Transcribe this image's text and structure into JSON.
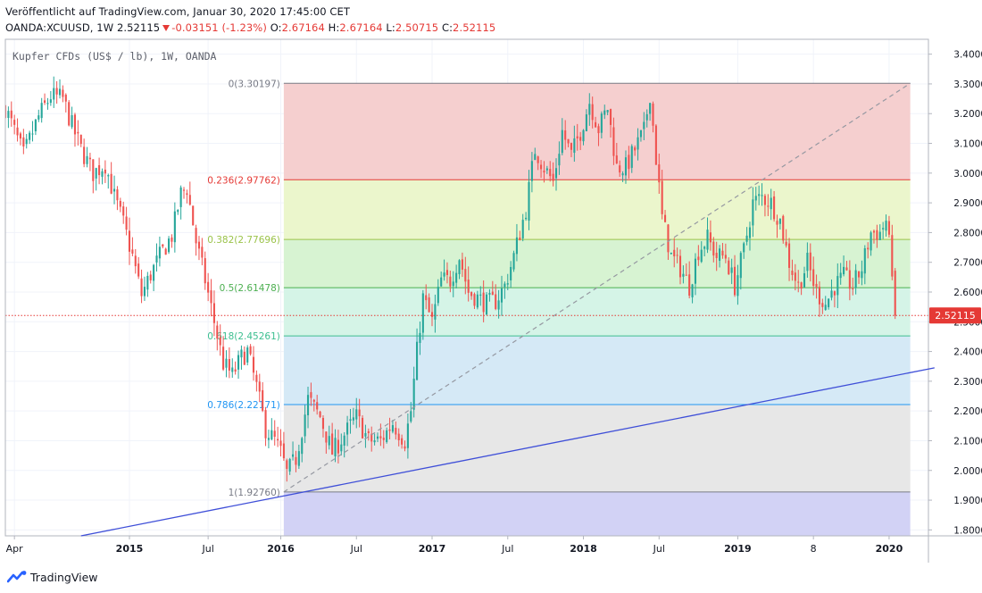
{
  "header": {
    "published": "Veröffentlicht auf TradingView.com, Januar 30, 2020 17:45:00 CET",
    "symbol": "OANDA:XCUUSD, 1W",
    "last": "2.52115",
    "change": "-0.03151 (-1.23%)",
    "o_label": "O:",
    "o": "2.67164",
    "h_label": "H:",
    "h": "2.67164",
    "l_label": "L:",
    "l": "2.50715",
    "c_label": "C:",
    "c": "2.52115"
  },
  "footer": {
    "brand": "TradingView"
  },
  "colors": {
    "bull": "#26a69a",
    "bear": "#ef5350",
    "trendline": "#3f4fd8",
    "price_line": "#e53935"
  },
  "chart_data": {
    "type": "candlestick",
    "title": "Kupfer CFDs (US$ / lb), 1W, OANDA",
    "ylim": [
      1.78,
      3.45
    ],
    "y_ticks": [
      "1.80000",
      "1.90000",
      "2.00000",
      "2.10000",
      "2.20000",
      "2.30000",
      "2.40000",
      "2.50000",
      "2.60000",
      "2.70000",
      "2.80000",
      "2.90000",
      "3.00000",
      "3.10000",
      "3.20000",
      "3.30000",
      "3.40000"
    ],
    "x_range_weeks": [
      0,
      305
    ],
    "x_ticks": [
      {
        "label": "Apr",
        "week": 3
      },
      {
        "label": "2015",
        "week": 41
      },
      {
        "label": "Jul",
        "week": 67
      },
      {
        "label": "2016",
        "week": 91
      },
      {
        "label": "Jul",
        "week": 116
      },
      {
        "label": "2017",
        "week": 141
      },
      {
        "label": "Jul",
        "week": 166
      },
      {
        "label": "2018",
        "week": 191
      },
      {
        "label": "Jul",
        "week": 216
      },
      {
        "label": "2019",
        "week": 242
      },
      {
        "label": "8",
        "week": 267
      },
      {
        "label": "2020",
        "week": 292
      }
    ],
    "last_price": {
      "value": 2.52115,
      "label": "2.52115"
    },
    "fibonacci": {
      "start_week": 92,
      "end_week": 299,
      "levels": [
        {
          "label": "0(3.30197)",
          "price": 3.30197,
          "line": "#787b86",
          "fill": "#f4cccc"
        },
        {
          "label": "0.236(2.97762)",
          "price": 2.97762,
          "line": "#e53935",
          "fill": "#eaf5c9"
        },
        {
          "label": "0.382(2.77696)",
          "price": 2.77696,
          "line": "#9bc34a",
          "fill": "#d5f2d0"
        },
        {
          "label": "0.5(2.61478)",
          "price": 2.61478,
          "line": "#4caf50",
          "fill": "#d3f3e6"
        },
        {
          "label": "0.618(2.45261)",
          "price": 2.45261,
          "line": "#3dbf90",
          "fill": "#d3e8f5"
        },
        {
          "label": "0.786(2.22171)",
          "price": 2.22171,
          "line": "#2196f3",
          "fill": "#e6e6e6"
        },
        {
          "label": "1(1.92760)",
          "price": 1.9276,
          "line": "#787b86",
          "fill": "#d0d0f4"
        }
      ],
      "bottom_price": 1.78
    },
    "fib_diagonal": [
      {
        "week": 92,
        "price": 1.9276
      },
      {
        "week": 299,
        "price": 3.30197
      }
    ],
    "trendline": [
      {
        "week": 25,
        "price": 1.78
      },
      {
        "week": 307,
        "price": 2.345
      }
    ],
    "anchors": [
      {
        "week": 0,
        "price": 3.22
      },
      {
        "week": 6,
        "price": 3.06
      },
      {
        "week": 11,
        "price": 3.19
      },
      {
        "week": 15,
        "price": 3.26
      },
      {
        "week": 19,
        "price": 3.25
      },
      {
        "week": 22,
        "price": 3.16
      },
      {
        "week": 25,
        "price": 3.08
      },
      {
        "week": 29,
        "price": 3.0
      },
      {
        "week": 33,
        "price": 3.03
      },
      {
        "week": 36,
        "price": 2.92
      },
      {
        "week": 39,
        "price": 2.83
      },
      {
        "week": 42,
        "price": 2.72
      },
      {
        "week": 45,
        "price": 2.59
      },
      {
        "week": 48,
        "price": 2.66
      },
      {
        "week": 51,
        "price": 2.72
      },
      {
        "week": 55,
        "price": 2.79
      },
      {
        "week": 58,
        "price": 2.93
      },
      {
        "week": 60,
        "price": 2.95
      },
      {
        "week": 63,
        "price": 2.77
      },
      {
        "week": 66,
        "price": 2.64
      },
      {
        "week": 69,
        "price": 2.5
      },
      {
        "week": 72,
        "price": 2.36
      },
      {
        "week": 75,
        "price": 2.32
      },
      {
        "week": 78,
        "price": 2.38
      },
      {
        "week": 80,
        "price": 2.4
      },
      {
        "week": 83,
        "price": 2.28
      },
      {
        "week": 86,
        "price": 2.14
      },
      {
        "week": 89,
        "price": 2.1
      },
      {
        "week": 91,
        "price": 2.06
      },
      {
        "week": 93,
        "price": 1.99
      },
      {
        "week": 96,
        "price": 2.04
      },
      {
        "week": 100,
        "price": 2.24
      },
      {
        "week": 104,
        "price": 2.18
      },
      {
        "week": 108,
        "price": 2.06
      },
      {
        "week": 112,
        "price": 2.12
      },
      {
        "week": 116,
        "price": 2.18
      },
      {
        "week": 120,
        "price": 2.1
      },
      {
        "week": 124,
        "price": 2.1
      },
      {
        "week": 128,
        "price": 2.16
      },
      {
        "week": 132,
        "price": 2.1
      },
      {
        "week": 134,
        "price": 2.2
      },
      {
        "week": 136,
        "price": 2.4
      },
      {
        "week": 138,
        "price": 2.58
      },
      {
        "week": 141,
        "price": 2.5
      },
      {
        "week": 144,
        "price": 2.64
      },
      {
        "week": 147,
        "price": 2.64
      },
      {
        "week": 150,
        "price": 2.72
      },
      {
        "week": 153,
        "price": 2.6
      },
      {
        "week": 156,
        "price": 2.58
      },
      {
        "week": 159,
        "price": 2.56
      },
      {
        "week": 162,
        "price": 2.57
      },
      {
        "week": 165,
        "price": 2.62
      },
      {
        "week": 168,
        "price": 2.72
      },
      {
        "week": 172,
        "price": 2.88
      },
      {
        "week": 175,
        "price": 3.08
      },
      {
        "week": 178,
        "price": 3.02
      },
      {
        "week": 181,
        "price": 2.97
      },
      {
        "week": 184,
        "price": 3.14
      },
      {
        "week": 187,
        "price": 3.06
      },
      {
        "week": 190,
        "price": 3.14
      },
      {
        "week": 193,
        "price": 3.24
      },
      {
        "week": 196,
        "price": 3.15
      },
      {
        "week": 199,
        "price": 3.22
      },
      {
        "week": 202,
        "price": 3.02
      },
      {
        "week": 205,
        "price": 3.02
      },
      {
        "week": 208,
        "price": 3.08
      },
      {
        "week": 211,
        "price": 3.14
      },
      {
        "week": 213,
        "price": 3.27
      },
      {
        "week": 215,
        "price": 3.05
      },
      {
        "week": 217,
        "price": 2.85
      },
      {
        "week": 220,
        "price": 2.72
      },
      {
        "week": 223,
        "price": 2.68
      },
      {
        "week": 226,
        "price": 2.62
      },
      {
        "week": 229,
        "price": 2.74
      },
      {
        "week": 232,
        "price": 2.78
      },
      {
        "week": 235,
        "price": 2.72
      },
      {
        "week": 238,
        "price": 2.72
      },
      {
        "week": 241,
        "price": 2.62
      },
      {
        "week": 244,
        "price": 2.74
      },
      {
        "week": 247,
        "price": 2.9
      },
      {
        "week": 250,
        "price": 2.92
      },
      {
        "week": 253,
        "price": 2.9
      },
      {
        "week": 256,
        "price": 2.84
      },
      {
        "week": 259,
        "price": 2.7
      },
      {
        "week": 262,
        "price": 2.62
      },
      {
        "week": 265,
        "price": 2.7
      },
      {
        "week": 268,
        "price": 2.6
      },
      {
        "week": 271,
        "price": 2.56
      },
      {
        "week": 274,
        "price": 2.62
      },
      {
        "week": 277,
        "price": 2.65
      },
      {
        "week": 280,
        "price": 2.62
      },
      {
        "week": 283,
        "price": 2.68
      },
      {
        "week": 286,
        "price": 2.8
      },
      {
        "week": 289,
        "price": 2.8
      },
      {
        "week": 291,
        "price": 2.84
      },
      {
        "week": 293,
        "price": 2.68
      },
      {
        "week": 294,
        "price": 2.52
      }
    ]
  }
}
